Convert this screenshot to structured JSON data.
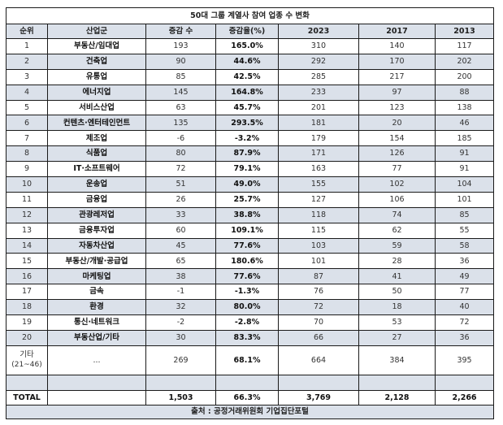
{
  "title": "50대 그룹 계열사 참여 업종 수 변화",
  "headers": [
    "순위",
    "산업군",
    "증감 수",
    "증감율(%)",
    "2023",
    "2017",
    "2013"
  ],
  "rows": [
    {
      "rank": "1",
      "industry": "부동산/임대업",
      "change": "193",
      "rate": "165.0%",
      "y2023": "310",
      "y2017": "140",
      "y2013": "117"
    },
    {
      "rank": "2",
      "industry": "건축업",
      "change": "90",
      "rate": "44.6%",
      "y2023": "292",
      "y2017": "170",
      "y2013": "202"
    },
    {
      "rank": "3",
      "industry": "유통업",
      "change": "85",
      "rate": "42.5%",
      "y2023": "285",
      "y2017": "217",
      "y2013": "200"
    },
    {
      "rank": "4",
      "industry": "에너지업",
      "change": "145",
      "rate": "164.8%",
      "y2023": "233",
      "y2017": "97",
      "y2013": "88"
    },
    {
      "rank": "5",
      "industry": "서비스산업",
      "change": "63",
      "rate": "45.7%",
      "y2023": "201",
      "y2017": "123",
      "y2013": "138"
    },
    {
      "rank": "6",
      "industry": "컨텐츠·엔터테인먼트",
      "change": "135",
      "rate": "293.5%",
      "y2023": "181",
      "y2017": "20",
      "y2013": "46"
    },
    {
      "rank": "7",
      "industry": "제조업",
      "change": "-6",
      "rate": "-3.2%",
      "y2023": "179",
      "y2017": "154",
      "y2013": "185"
    },
    {
      "rank": "8",
      "industry": "식품업",
      "change": "80",
      "rate": "87.9%",
      "y2023": "171",
      "y2017": "126",
      "y2013": "91"
    },
    {
      "rank": "9",
      "industry": "IT·소프트웨어",
      "change": "72",
      "rate": "79.1%",
      "y2023": "163",
      "y2017": "77",
      "y2013": "91"
    },
    {
      "rank": "10",
      "industry": "운송업",
      "change": "51",
      "rate": "49.0%",
      "y2023": "155",
      "y2017": "102",
      "y2013": "104"
    },
    {
      "rank": "11",
      "industry": "금융업",
      "change": "26",
      "rate": "25.7%",
      "y2023": "127",
      "y2017": "106",
      "y2013": "101"
    },
    {
      "rank": "12",
      "industry": "관광레저업",
      "change": "33",
      "rate": "38.8%",
      "y2023": "118",
      "y2017": "74",
      "y2013": "85"
    },
    {
      "rank": "13",
      "industry": "금융투자업",
      "change": "60",
      "rate": "109.1%",
      "y2023": "115",
      "y2017": "62",
      "y2013": "55"
    },
    {
      "rank": "14",
      "industry": "자동차산업",
      "change": "45",
      "rate": "77.6%",
      "y2023": "103",
      "y2017": "59",
      "y2013": "58"
    },
    {
      "rank": "15",
      "industry": "부동산/개발·공급업",
      "change": "65",
      "rate": "180.6%",
      "y2023": "101",
      "y2017": "28",
      "y2013": "36"
    },
    {
      "rank": "16",
      "industry": "마케팅업",
      "change": "38",
      "rate": "77.6%",
      "y2023": "87",
      "y2017": "41",
      "y2013": "49"
    },
    {
      "rank": "17",
      "industry": "금속",
      "change": "-1",
      "rate": "-1.3%",
      "y2023": "76",
      "y2017": "50",
      "y2013": "77"
    },
    {
      "rank": "18",
      "industry": "환경",
      "change": "32",
      "rate": "80.0%",
      "y2023": "72",
      "y2017": "18",
      "y2013": "40"
    },
    {
      "rank": "19",
      "industry": "통신·네트워크",
      "change": "-2",
      "rate": "-2.8%",
      "y2023": "70",
      "y2017": "53",
      "y2013": "72"
    },
    {
      "rank": "20",
      "industry": "부동산업/기타",
      "change": "30",
      "rate": "83.3%",
      "y2023": "66",
      "y2017": "27",
      "y2013": "36"
    }
  ],
  "other": {
    "rank": "기타",
    "rank_sub": "(21~46)",
    "industry": "...",
    "change": "269",
    "rate": "68.1%",
    "y2023": "664",
    "y2017": "384",
    "y2013": "395"
  },
  "total": {
    "label": "TOTAL",
    "industry": "",
    "change": "1,503",
    "rate": "66.3%",
    "y2023": "3,769",
    "y2017": "2,128",
    "y2013": "2,266"
  },
  "source": "출처 : 공정거래위원회 기업집단포털"
}
